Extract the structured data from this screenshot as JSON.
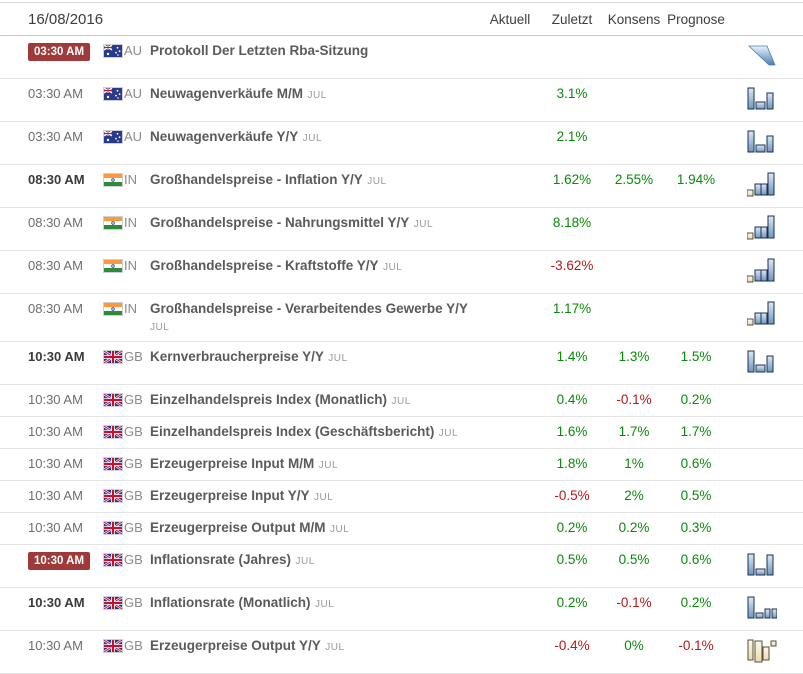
{
  "colors": {
    "positive": "#0a8a0a",
    "negative": "#b11a1a",
    "badge_bg": "#a03a3a"
  },
  "header": {
    "date": "16/08/2016",
    "columns": [
      "Aktuell",
      "Zuletzt",
      "Konsens",
      "Prognose"
    ]
  },
  "rows": [
    {
      "time": "03:30 AM",
      "time_style": "badge",
      "flag": "au",
      "country": "AU",
      "name": "Protokoll Der Letzten Rba-Sitzung",
      "month": "",
      "values": [
        "",
        "",
        "",
        ""
      ],
      "icon": "report-icon"
    },
    {
      "time": "03:30 AM",
      "time_style": "normal",
      "flag": "au",
      "country": "AU",
      "name": "Neuwagenverkäufe M/M",
      "month": "JUL",
      "values": [
        "",
        "3.1%",
        "",
        ""
      ],
      "icon": "bars-tall-low-med-icon"
    },
    {
      "time": "03:30 AM",
      "time_style": "normal",
      "flag": "au",
      "country": "AU",
      "name": "Neuwagenverkäufe Y/Y",
      "month": "JUL",
      "values": [
        "",
        "2.1%",
        "",
        ""
      ],
      "icon": "bars-tall-low-med-icon"
    },
    {
      "time": "08:30 AM",
      "time_style": "bold",
      "flag": "in",
      "country": "IN",
      "name": "Großhandelspreise - Inflation Y/Y",
      "month": "JUL",
      "values": [
        "",
        "1.62%",
        "2.55%",
        "1.94%"
      ],
      "icon": "bars-step-up-icon"
    },
    {
      "time": "08:30 AM",
      "time_style": "normal",
      "flag": "in",
      "country": "IN",
      "name": "Großhandelspreise - Nahrungsmittel Y/Y",
      "month": "JUL",
      "values": [
        "",
        "8.18%",
        "",
        ""
      ],
      "icon": "bars-step-up-icon"
    },
    {
      "time": "08:30 AM",
      "time_style": "normal",
      "flag": "in",
      "country": "IN",
      "name": "Großhandelspreise - Kraftstoffe Y/Y",
      "month": "JUL",
      "values": [
        "",
        "-3.62%",
        "",
        ""
      ],
      "icon": "bars-step-up-icon"
    },
    {
      "time": "08:30 AM",
      "time_style": "normal",
      "flag": "in",
      "country": "IN",
      "name": "Großhandelspreise - Verarbeitendes Gewerbe Y/Y",
      "month": "JUL",
      "values": [
        "",
        "1.17%",
        "",
        ""
      ],
      "icon": "bars-step-up-icon"
    },
    {
      "time": "10:30 AM",
      "time_style": "bold",
      "flag": "gb",
      "country": "GB",
      "name": "Kernverbraucherpreise Y/Y",
      "month": "JUL",
      "values": [
        "",
        "1.4%",
        "1.3%",
        "1.5%"
      ],
      "icon": "bars-tall-low-med-icon"
    },
    {
      "time": "10:30 AM",
      "time_style": "normal",
      "flag": "gb",
      "country": "GB",
      "name": "Einzelhandelspreis Index (Monatlich)",
      "month": "JUL",
      "values": [
        "",
        "0.4%",
        "-0.1%",
        "0.2%"
      ],
      "icon": ""
    },
    {
      "time": "10:30 AM",
      "time_style": "normal",
      "flag": "gb",
      "country": "GB",
      "name": "Einzelhandelspreis Index (Geschäftsbericht)",
      "month": "JUL",
      "values": [
        "",
        "1.6%",
        "1.7%",
        "1.7%"
      ],
      "icon": ""
    },
    {
      "time": "10:30 AM",
      "time_style": "normal",
      "flag": "gb",
      "country": "GB",
      "name": "Erzeugerpreise Input M/M",
      "month": "JUL",
      "values": [
        "",
        "1.8%",
        "1%",
        "0.6%"
      ],
      "icon": ""
    },
    {
      "time": "10:30 AM",
      "time_style": "normal",
      "flag": "gb",
      "country": "GB",
      "name": "Erzeugerpreise Input Y/Y",
      "month": "JUL",
      "values": [
        "",
        "-0.5%",
        "2%",
        "0.5%"
      ],
      "icon": ""
    },
    {
      "time": "10:30 AM",
      "time_style": "normal",
      "flag": "gb",
      "country": "GB",
      "name": "Erzeugerpreise Output M/M",
      "month": "JUL",
      "values": [
        "",
        "0.2%",
        "0.2%",
        "0.3%"
      ],
      "icon": ""
    },
    {
      "time": "10:30 AM",
      "time_style": "badge",
      "flag": "gb",
      "country": "GB",
      "name": "Inflationsrate (Jahres)",
      "month": "JUL",
      "values": [
        "",
        "0.5%",
        "0.5%",
        "0.6%"
      ],
      "icon": "bars-tall-low-tall-icon"
    },
    {
      "time": "10:30 AM",
      "time_style": "bold",
      "flag": "gb",
      "country": "GB",
      "name": "Inflationsrate (Monatlich)",
      "month": "JUL",
      "values": [
        "",
        "0.2%",
        "-0.1%",
        "0.2%"
      ],
      "icon": "bars-tall-low-small-icon"
    },
    {
      "time": "10:30 AM",
      "time_style": "normal",
      "flag": "gb",
      "country": "GB",
      "name": "Erzeugerpreise Output Y/Y",
      "month": "JUL",
      "values": [
        "",
        "-0.4%",
        "0%",
        "-0.1%"
      ],
      "icon": "bars-outline-down-icon"
    }
  ]
}
